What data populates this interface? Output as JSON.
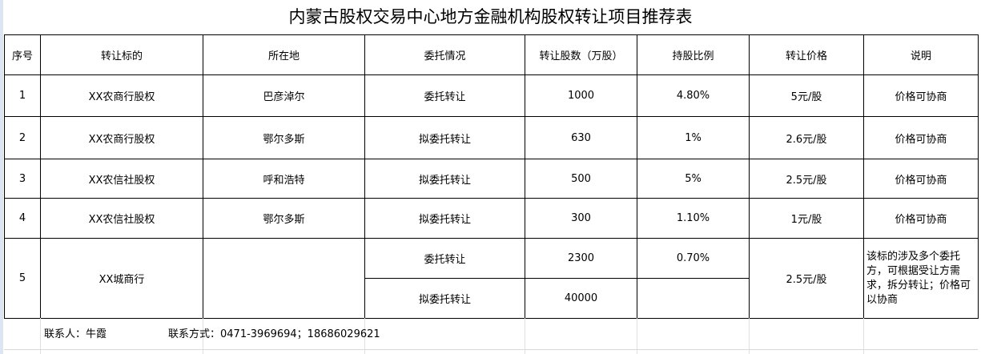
{
  "title": "内蒙古股权交易中心地方金融机构股权转让项目推荐表",
  "headers": [
    "序号",
    "转让标的",
    "所在地",
    "委托情况",
    "转让股数（万股）",
    "持股比例",
    "转让价格",
    "说明"
  ],
  "rows": [
    {
      "no": "1",
      "target": "XX农商行股权",
      "location": "巴彦淖尔",
      "entrust": "委托转让",
      "shares": "1000",
      "ratio": "4.80%",
      "price": "5元/股",
      "note": "价格可协商"
    },
    {
      "no": "2",
      "target": "XX农商行股权",
      "location": "鄂尔多斯",
      "entrust": "拟委托转让",
      "shares": "630",
      "ratio": "1%",
      "price": "2.6元/股",
      "note": "价格可协商"
    },
    {
      "no": "3",
      "target": "XX农信社股权",
      "location": "呼和浩特",
      "entrust": "拟委托转让",
      "shares": "500",
      "ratio": "5%",
      "price": "2.5元/股",
      "note": "价格可协商"
    },
    {
      "no": "4",
      "target": "XX农信社股权",
      "location": "鄂尔多斯",
      "entrust": "拟委托转让",
      "shares": "300",
      "ratio": "1.10%",
      "price": "1元/股",
      "note": "价格可协商"
    }
  ],
  "row5": {
    "no": "5",
    "target": "XX城商行",
    "location": "",
    "entrust_a": "委托转让",
    "shares_a": "2300",
    "ratio_a": "0.70%",
    "entrust_b": "拟委托转让",
    "shares_b": "40000",
    "ratio_b": "",
    "price": "2.5元/股",
    "note": "该标的涉及多个委托方，可根据受让方需求，拆分转让；价格可以协商"
  },
  "contact": {
    "person": "联系人：牛霞",
    "phone": "联系方式：0471-3969694；18686029621"
  }
}
